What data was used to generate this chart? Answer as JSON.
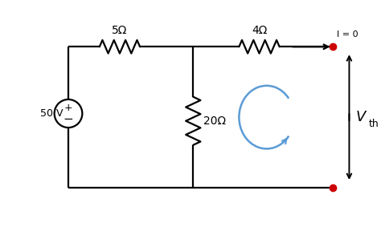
{
  "bg_color": "#ffffff",
  "wire_color": "#000000",
  "resistor_color": "#000000",
  "source_color": "#000000",
  "terminal_color": "#cc0000",
  "arrow_color": "#000000",
  "loop_color": "#5b9bd5",
  "text_color": "#000000",
  "label_50v": "50 V",
  "label_5ohm": "5Ω",
  "label_4ohm": "4Ω",
  "label_20ohm": "20Ω",
  "label_vth": "V",
  "label_vth_sub": "th",
  "label_i0": "I = 0",
  "lw": 1.6,
  "fig_width": 4.74,
  "fig_height": 2.83,
  "dpi": 100
}
